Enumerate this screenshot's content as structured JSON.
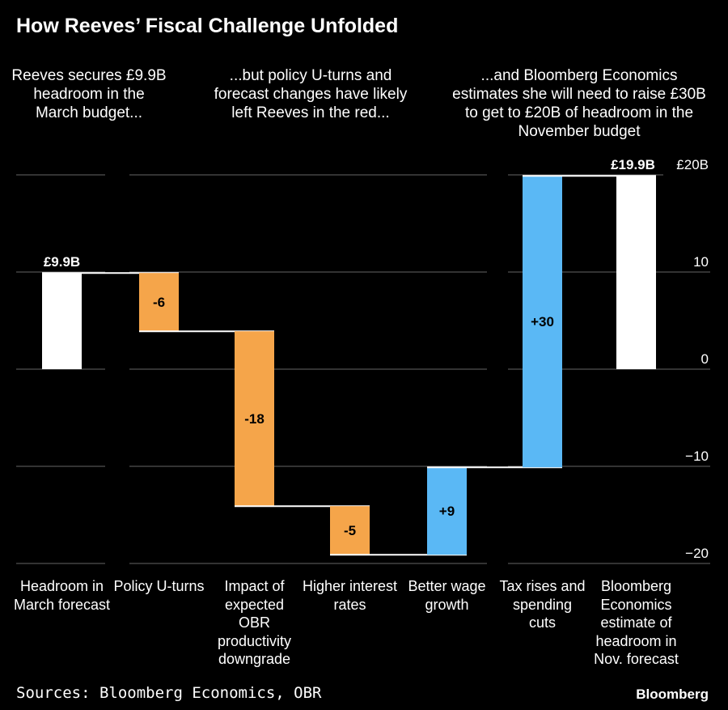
{
  "chart_data": {
    "type": "waterfall",
    "title": "How Reeves’ Fiscal Challenge Unfolded",
    "annotations": [
      "Reeves secures £9.9B headroom in the March budget...",
      "...but policy U-turns and forecast changes have likely left Reeves in the red...",
      "...and Bloomberg Economics estimates she will need to raise £30B to get to £20B of headroom in the November budget"
    ],
    "categories": [
      "Headroom in March forecast",
      "Policy U-turns",
      "Impact of expected OBR productivity downgrade",
      "Higher interest rates",
      "Better wage growth",
      "Tax rises and spending cuts",
      "Bloomberg Economics estimate of headroom in Nov. forecast"
    ],
    "values": [
      9.9,
      -6,
      -18,
      -5,
      9,
      30,
      19.9
    ],
    "bar_kinds": [
      "total",
      "change",
      "change",
      "change",
      "change",
      "change",
      "total"
    ],
    "data_labels": [
      "£9.9B",
      "-6",
      "-18",
      "-5",
      "+9",
      "+30",
      "£19.9B"
    ],
    "yaxis": {
      "ticks": [
        20,
        10,
        0,
        -10,
        -20
      ],
      "tick_labels": [
        "£20B",
        "10",
        "0",
        "−10",
        "−20"
      ],
      "ylim": [
        -20,
        20
      ],
      "position": "right"
    },
    "grid": true,
    "colors": {
      "total": "#ffffff",
      "negative": "#F5A54A",
      "positive": "#5AB8F5"
    },
    "source": "Sources: Bloomberg Economics, OBR",
    "brand": "Bloomberg"
  }
}
